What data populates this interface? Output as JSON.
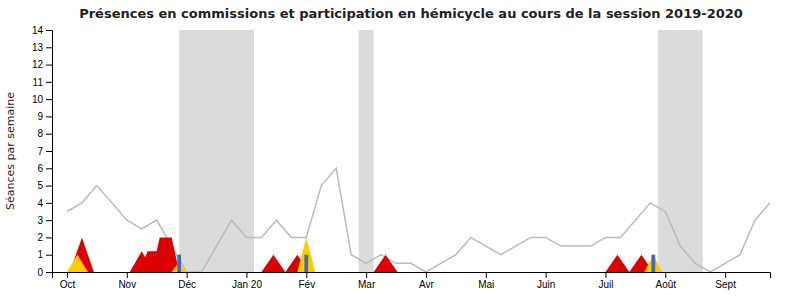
{
  "chart_data": {
    "type": "line",
    "title": "Présences en commissions et participation en hémicycle au cours de la session 2019-2020",
    "ylabel": "Séances par semaine",
    "xlim": [
      -1,
      47
    ],
    "xticks": [
      {
        "value": 0,
        "label": "Oct"
      },
      {
        "value": 4,
        "label": "Nov"
      },
      {
        "value": 8,
        "label": "Déc"
      },
      {
        "value": 12,
        "label": "Jan 20"
      },
      {
        "value": 16,
        "label": "Fév"
      },
      {
        "value": 20,
        "label": "Mar"
      },
      {
        "value": 24,
        "label": "Avr"
      },
      {
        "value": 28,
        "label": "Mai"
      },
      {
        "value": 32,
        "label": "Juin"
      },
      {
        "value": 36,
        "label": "Juil"
      },
      {
        "value": 40,
        "label": "Août"
      },
      {
        "value": 44,
        "label": "Sept"
      }
    ],
    "ylim": [
      0,
      14
    ],
    "yticks": [
      0,
      1,
      2,
      3,
      4,
      5,
      6,
      7,
      8,
      9,
      10,
      11,
      12,
      13,
      14
    ],
    "grid": false,
    "shaded_regions": {
      "color": "#999999",
      "ranges": [
        [
          7.5,
          12.5
        ],
        [
          19.5,
          20.5
        ],
        [
          39.5,
          42.5
        ]
      ]
    },
    "series": [
      {
        "type": "line",
        "color": "#bbbbbb",
        "x": [
          0,
          1,
          2,
          3,
          4,
          5,
          6,
          7,
          8,
          9,
          10,
          11,
          12,
          13,
          14,
          15,
          16,
          17,
          18,
          19,
          20,
          21,
          22,
          23,
          24,
          25,
          26,
          27,
          28,
          29,
          30,
          31,
          32,
          33,
          34,
          35,
          36,
          37,
          38,
          39,
          40,
          41,
          42,
          43,
          44,
          45,
          46,
          47
        ],
        "values": [
          3.5,
          4.0,
          5.0,
          4.0,
          3.0,
          2.5,
          3.0,
          1.5,
          0.0,
          0.0,
          1.5,
          3.0,
          2.0,
          2.0,
          3.0,
          2.0,
          2.0,
          5.0,
          6.0,
          1.0,
          0.5,
          1.0,
          0.5,
          0.5,
          0.0,
          0.5,
          1.0,
          2.0,
          1.5,
          1.0,
          1.5,
          2.0,
          2.0,
          1.5,
          1.5,
          1.5,
          2.0,
          2.0,
          3.0,
          4.0,
          3.5,
          1.5,
          0.5,
          0.0,
          0.5,
          1.0,
          3.0,
          4.0
        ]
      },
      {
        "type": "area",
        "color": "#dd0000",
        "x": [
          0.2,
          1.0,
          1.8
        ],
        "values": [
          0,
          2,
          0
        ]
      },
      {
        "type": "area",
        "color": "#dd0000",
        "x": [
          4.2,
          5.0,
          5.8
        ],
        "values": [
          0,
          1.2,
          0
        ]
      },
      {
        "type": "area",
        "color": "#dd0000",
        "x": [
          4.8,
          5.4,
          6.0,
          6.2,
          7.0,
          7.5
        ],
        "values": [
          0,
          1.2,
          1.2,
          2.0,
          2.0,
          0
        ]
      },
      {
        "type": "area",
        "color": "#dd0000",
        "x": [
          13.0,
          13.8,
          14.6
        ],
        "values": [
          0,
          1.0,
          0
        ]
      },
      {
        "type": "area",
        "color": "#dd0000",
        "x": [
          14.6,
          15.4,
          16.2
        ],
        "values": [
          0,
          1.0,
          0
        ]
      },
      {
        "type": "area",
        "color": "#dd0000",
        "x": [
          20.5,
          21.3,
          22.1
        ],
        "values": [
          0,
          1.0,
          0
        ]
      },
      {
        "type": "area",
        "color": "#dd0000",
        "x": [
          36.0,
          36.8,
          37.6
        ],
        "values": [
          0,
          1.0,
          0
        ]
      },
      {
        "type": "area",
        "color": "#dd0000",
        "x": [
          37.6,
          38.4,
          39.2
        ],
        "values": [
          0,
          1.0,
          0
        ]
      },
      {
        "type": "area",
        "color": "#ffcc00",
        "x": [
          0.0,
          0.7,
          1.4
        ],
        "values": [
          0,
          1.0,
          0
        ]
      },
      {
        "type": "area",
        "color": "#ffcc00",
        "x": [
          7.0,
          7.5,
          8.0
        ],
        "values": [
          0,
          0.6,
          0
        ]
      },
      {
        "type": "area",
        "color": "#ffcc00",
        "x": [
          15.4,
          16.0,
          16.6
        ],
        "values": [
          0,
          2.0,
          0
        ]
      },
      {
        "type": "area",
        "color": "#ffcc00",
        "x": [
          38.6,
          39.2,
          39.8
        ],
        "values": [
          0,
          1.0,
          0
        ]
      },
      {
        "type": "bar",
        "color": "#4466bb",
        "x": [
          7.5,
          16.0,
          39.2
        ],
        "values": [
          1.0,
          1.0,
          1.0
        ]
      }
    ]
  }
}
